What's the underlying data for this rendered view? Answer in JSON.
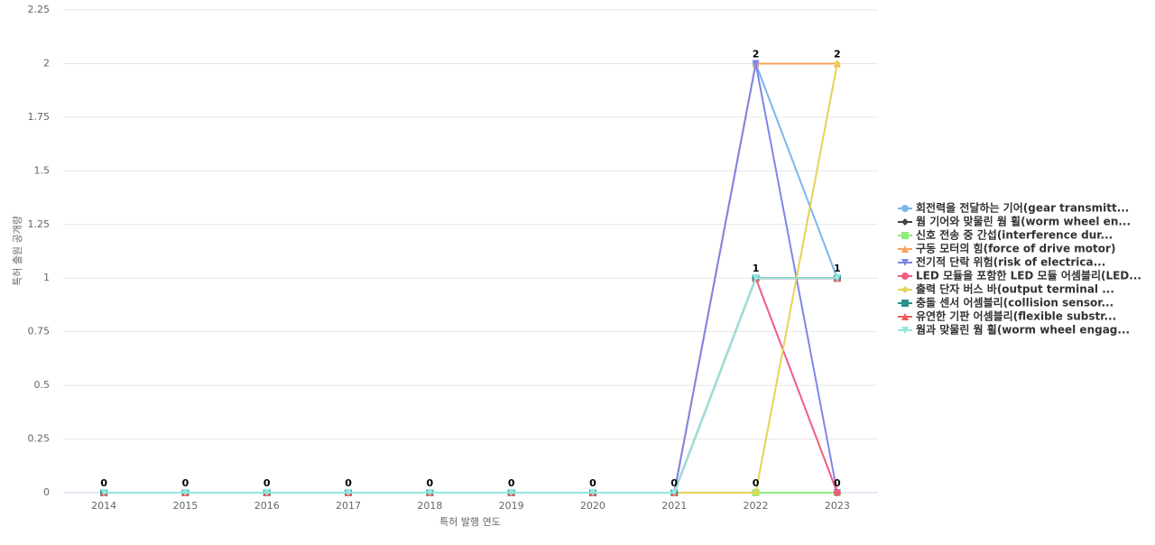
{
  "chart_data": {
    "type": "line",
    "x_label": "특허 발행 연도",
    "y_label": "특허 출원 공개량",
    "categories": [
      "2014",
      "2015",
      "2016",
      "2017",
      "2018",
      "2019",
      "2020",
      "2021",
      "2022",
      "2023"
    ],
    "ylim": [
      0,
      2.25
    ],
    "yticks": [
      0,
      0.25,
      0.5,
      0.75,
      1,
      1.25,
      1.5,
      1.75,
      2,
      2.25
    ],
    "grid": true,
    "legend": "right",
    "series": [
      {
        "name": "회전력을 전달하는 기어(gear transmitt...",
        "color": "#7cb5ec",
        "values": [
          0,
          0,
          0,
          0,
          0,
          0,
          0,
          0,
          2,
          1
        ]
      },
      {
        "name": "웜 기어와 맞물린 웜 휠(worm wheel en...",
        "color": "#434348",
        "values": [
          0,
          0,
          0,
          0,
          0,
          0,
          0,
          0,
          1,
          1
        ]
      },
      {
        "name": "신호 전송 중 간섭(interference dur...",
        "color": "#90ed7d",
        "values": [
          0,
          0,
          0,
          0,
          0,
          0,
          0,
          0,
          0,
          0
        ]
      },
      {
        "name": "구동 모터의 힘(force of drive motor)",
        "color": "#f7a35c",
        "values": [
          0,
          0,
          0,
          0,
          0,
          0,
          0,
          0,
          2,
          2
        ]
      },
      {
        "name": "전기적 단락 위험(risk of electrica...",
        "color": "#8085e9",
        "values": [
          0,
          0,
          0,
          0,
          0,
          0,
          0,
          0,
          2,
          0
        ]
      },
      {
        "name": "LED 모듈을 포함한 LED 모듈 어셈블리(LED...",
        "color": "#f15c80",
        "values": [
          0,
          0,
          0,
          0,
          0,
          0,
          0,
          0,
          1,
          0
        ]
      },
      {
        "name": "출력 단자 버스 바(output terminal ...",
        "color": "#e4d354",
        "values": [
          0,
          0,
          0,
          0,
          0,
          0,
          0,
          0,
          0,
          2
        ]
      },
      {
        "name": "충돌 센서 어셈블리(collision sensor...",
        "color": "#2b908f",
        "values": [
          0,
          0,
          0,
          0,
          0,
          0,
          0,
          0,
          1,
          1
        ]
      },
      {
        "name": "유연한 기판 어셈블리(flexible substr...",
        "color": "#f45b5b",
        "values": [
          0,
          0,
          0,
          0,
          0,
          0,
          0,
          0,
          1,
          1
        ]
      },
      {
        "name": "웜과 맞물린 웜 휠(worm wheel engag...",
        "color": "#91e8e1",
        "values": [
          0,
          0,
          0,
          0,
          0,
          0,
          0,
          0,
          1,
          1
        ]
      }
    ]
  }
}
